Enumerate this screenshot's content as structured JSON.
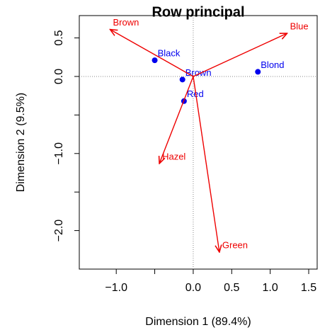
{
  "chart_data": {
    "type": "scatter",
    "title": "Row principal",
    "x_label": "Dimension 1 (89.4%)",
    "y_label": "Dimension 2 (9.5%)",
    "xlim": [
      -1.48,
      1.61
    ],
    "ylim": [
      -2.5,
      0.79
    ],
    "xticks": [
      {
        "value": -1,
        "label": "−1.0"
      },
      {
        "value": -0.5,
        "label": null
      },
      {
        "value": 0,
        "label": "0.0"
      },
      0.5,
      {
        "value": 1,
        "label": "1.0"
      },
      1.5
    ],
    "yticks": [
      0.5,
      {
        "value": 0,
        "label": "0.0"
      },
      {
        "value": -0.5,
        "label": null
      },
      {
        "value": -1,
        "label": "−1.0"
      },
      {
        "value": -1.5,
        "label": null
      },
      {
        "value": -2,
        "label": "−2.0"
      }
    ],
    "reference_lines": true,
    "series": [
      {
        "style": "points",
        "color": "#0000ee",
        "labels": [
          "Black",
          "Brown",
          "Red",
          "Blond"
        ],
        "x": [
          -0.5,
          -0.14,
          -0.12,
          0.84
        ],
        "values": [
          0.21,
          -0.04,
          -0.32,
          0.06
        ]
      },
      {
        "style": "arrows",
        "color": "#ee0000",
        "labels": [
          "Brown",
          "Blue",
          "Hazel",
          "Green"
        ],
        "x": [
          -1.08,
          1.22,
          -0.44,
          0.34
        ],
        "values": [
          0.61,
          0.56,
          -1.13,
          -2.28
        ]
      }
    ]
  }
}
